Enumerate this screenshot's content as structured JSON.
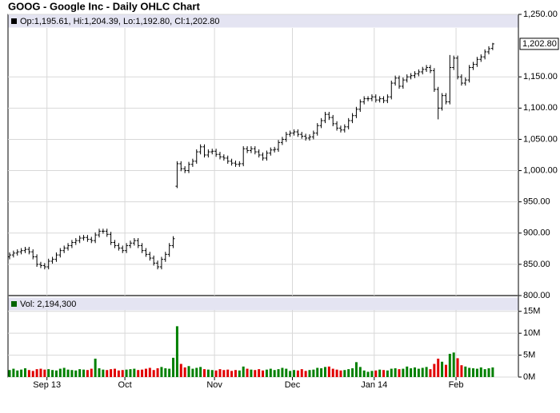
{
  "chart_data": [
    {
      "type": "ohlc",
      "title": "GOOG - Google Inc - Daily OHLC Chart",
      "legend": "Op:1,195.61, Hi:1,204.39, Lo:1,192.80, Cl:1,202.80",
      "last_price_label": "1,202.80",
      "color": "#000000",
      "legend_color": "#000000",
      "grid": true,
      "categories": [
        null,
        null,
        null,
        null,
        null,
        null,
        null,
        null,
        null,
        null,
        "Sep 13",
        null,
        null,
        null,
        null,
        null,
        null,
        null,
        null,
        null,
        null,
        null,
        null,
        null,
        null,
        null,
        null,
        null,
        null,
        null,
        "Oct",
        null,
        null,
        null,
        null,
        null,
        null,
        null,
        null,
        null,
        null,
        null,
        null,
        null,
        null,
        null,
        null,
        null,
        null,
        null,
        null,
        null,
        null,
        "Nov",
        null,
        null,
        null,
        null,
        null,
        null,
        null,
        null,
        null,
        null,
        null,
        null,
        null,
        null,
        null,
        null,
        null,
        null,
        null,
        "Dec",
        null,
        null,
        null,
        null,
        null,
        null,
        null,
        null,
        null,
        null,
        null,
        null,
        null,
        null,
        null,
        null,
        null,
        null,
        null,
        null,
        "Jan 14",
        null,
        null,
        null,
        null,
        null,
        null,
        null,
        null,
        null,
        null,
        null,
        null,
        null,
        null,
        null,
        null,
        null,
        null,
        null,
        null,
        "Feb",
        null,
        null,
        null,
        null,
        null,
        null,
        null,
        null,
        null
      ],
      "open": [
        862,
        865,
        868,
        870,
        872,
        874,
        870,
        862,
        850,
        848,
        846,
        855,
        858,
        865,
        872,
        876,
        880,
        885,
        888,
        892,
        893,
        890,
        888,
        897,
        903,
        903,
        898,
        885,
        880,
        876,
        872,
        880,
        884,
        888,
        880,
        872,
        866,
        860,
        852,
        846,
        858,
        866,
        880,
        975,
        1011,
        1003,
        1000,
        1010,
        1015,
        1030,
        1038,
        1025,
        1030,
        1031,
        1026,
        1022,
        1020,
        1015,
        1012,
        1010,
        1011,
        1035,
        1032,
        1035,
        1030,
        1025,
        1020,
        1028,
        1033,
        1034,
        1045,
        1050,
        1058,
        1060,
        1062,
        1058,
        1055,
        1052,
        1054,
        1060,
        1072,
        1080,
        1090,
        1085,
        1075,
        1068,
        1065,
        1070,
        1080,
        1088,
        1098,
        1110,
        1115,
        1115,
        1118,
        1113,
        1115,
        1112,
        1118,
        1140,
        1148,
        1135,
        1145,
        1150,
        1152,
        1155,
        1158,
        1162,
        1165,
        1160,
        1130,
        1100,
        1120,
        1110,
        1165,
        1180,
        1150,
        1140,
        1145,
        1165,
        1170,
        1178,
        1182,
        1190,
        1195.61
      ],
      "high": [
        869,
        872,
        874,
        876,
        878,
        878,
        874,
        866,
        854,
        852,
        859,
        862,
        869,
        876,
        880,
        884,
        889,
        892,
        896,
        897,
        897,
        894,
        901,
        907,
        907,
        907,
        902,
        889,
        884,
        880,
        884,
        888,
        892,
        892,
        884,
        876,
        870,
        864,
        856,
        862,
        870,
        884,
        895,
        1015,
        1015,
        1007,
        1014,
        1019,
        1034,
        1042,
        1042,
        1034,
        1035,
        1035,
        1030,
        1026,
        1024,
        1019,
        1016,
        1015,
        1039,
        1039,
        1039,
        1039,
        1034,
        1029,
        1032,
        1037,
        1038,
        1049,
        1054,
        1062,
        1064,
        1066,
        1066,
        1062,
        1059,
        1058,
        1064,
        1076,
        1084,
        1094,
        1094,
        1089,
        1079,
        1072,
        1074,
        1084,
        1092,
        1102,
        1114,
        1119,
        1119,
        1122,
        1122,
        1119,
        1119,
        1122,
        1144,
        1152,
        1152,
        1149,
        1154,
        1156,
        1159,
        1162,
        1166,
        1169,
        1169,
        1164,
        1134,
        1124,
        1124,
        1185,
        1184,
        1184,
        1154,
        1149,
        1169,
        1174,
        1182,
        1186,
        1194,
        1199,
        1204.39
      ],
      "low": [
        858,
        861,
        864,
        866,
        868,
        866,
        858,
        846,
        844,
        842,
        842,
        851,
        854,
        861,
        868,
        872,
        876,
        881,
        884,
        888,
        886,
        884,
        884,
        893,
        899,
        894,
        881,
        876,
        872,
        868,
        868,
        876,
        880,
        876,
        868,
        862,
        856,
        848,
        842,
        842,
        854,
        862,
        876,
        972,
        999,
        996,
        996,
        1006,
        1011,
        1026,
        1021,
        1021,
        1026,
        1022,
        1018,
        1016,
        1011,
        1008,
        1006,
        1006,
        1007,
        1028,
        1028,
        1026,
        1021,
        1016,
        1016,
        1024,
        1029,
        1030,
        1041,
        1046,
        1054,
        1056,
        1054,
        1051,
        1048,
        1048,
        1050,
        1056,
        1068,
        1076,
        1081,
        1071,
        1064,
        1061,
        1061,
        1066,
        1076,
        1084,
        1094,
        1106,
        1111,
        1111,
        1109,
        1109,
        1108,
        1108,
        1114,
        1136,
        1131,
        1131,
        1141,
        1146,
        1148,
        1151,
        1154,
        1158,
        1156,
        1126,
        1082,
        1096,
        1106,
        1106,
        1161,
        1146,
        1136,
        1136,
        1141,
        1161,
        1166,
        1174,
        1178,
        1186,
        1192.8
      ],
      "close": [
        865,
        868,
        870,
        872,
        874,
        870,
        862,
        850,
        848,
        846,
        855,
        858,
        865,
        872,
        876,
        880,
        885,
        888,
        892,
        893,
        890,
        888,
        897,
        903,
        903,
        898,
        885,
        880,
        876,
        872,
        880,
        884,
        888,
        880,
        872,
        866,
        860,
        852,
        846,
        858,
        866,
        880,
        891,
        1011,
        1003,
        1000,
        1010,
        1015,
        1030,
        1038,
        1025,
        1030,
        1031,
        1026,
        1022,
        1020,
        1015,
        1012,
        1010,
        1011,
        1035,
        1032,
        1035,
        1030,
        1025,
        1020,
        1028,
        1033,
        1034,
        1045,
        1050,
        1058,
        1060,
        1062,
        1058,
        1055,
        1052,
        1054,
        1060,
        1072,
        1080,
        1090,
        1085,
        1075,
        1068,
        1065,
        1070,
        1080,
        1088,
        1098,
        1110,
        1115,
        1115,
        1118,
        1113,
        1115,
        1112,
        1118,
        1140,
        1148,
        1135,
        1145,
        1150,
        1152,
        1155,
        1158,
        1162,
        1165,
        1160,
        1130,
        1100,
        1120,
        1110,
        1165,
        1180,
        1150,
        1140,
        1145,
        1165,
        1170,
        1178,
        1182,
        1190,
        1195,
        1202.8
      ],
      "ylim": [
        800,
        1250
      ],
      "yticks": [
        {
          "value": 1250,
          "label": "1,250.00"
        },
        {
          "value": 1150,
          "label": "1,150.00"
        },
        {
          "value": 1100,
          "label": "1,100.00"
        },
        {
          "value": 1050,
          "label": "1,050.00"
        },
        {
          "value": 1000,
          "label": "1,000.00"
        },
        {
          "value": 950,
          "label": "950.00"
        },
        {
          "value": 900,
          "label": "900.00"
        },
        {
          "value": 850,
          "label": "850.00"
        },
        {
          "value": 800,
          "label": "800.00"
        }
      ]
    },
    {
      "type": "bar",
      "legend": "Vol: 2,194,300",
      "legend_color": "#006400",
      "up_color": "#008000",
      "down_color": "#e00000",
      "grid": true,
      "values": [
        1.6,
        1.9,
        1.5,
        1.7,
        2.0,
        1.6,
        1.4,
        1.8,
        1.9,
        1.7,
        1.8,
        1.6,
        1.5,
        1.9,
        2.1,
        1.7,
        1.6,
        1.5,
        1.8,
        1.7,
        1.6,
        1.9,
        4.2,
        2.0,
        1.7,
        1.6,
        1.8,
        1.9,
        1.5,
        1.6,
        1.7,
        1.8,
        1.9,
        1.6,
        1.7,
        1.9,
        2.1,
        1.6,
        2.0,
        2.3,
        2.0,
        1.9,
        4.4,
        11.6,
        3.0,
        2.2,
        2.5,
        1.9,
        2.1,
        2.3,
        1.8,
        1.7,
        1.6,
        1.5,
        1.8,
        1.6,
        1.7,
        1.4,
        1.6,
        1.5,
        2.4,
        1.9,
        1.7,
        1.6,
        1.8,
        1.5,
        1.7,
        1.9,
        1.6,
        1.8,
        2.1,
        1.9,
        1.4,
        1.6,
        1.5,
        1.8,
        1.4,
        1.6,
        1.7,
        2.1,
        2.0,
        2.3,
        2.4,
        1.9,
        1.7,
        1.5,
        1.6,
        1.8,
        2.0,
        3.4,
        2.3,
        1.5,
        1.2,
        1.4,
        1.5,
        1.7,
        1.6,
        1.5,
        1.9,
        2.0,
        1.8,
        1.9,
        2.4,
        2.0,
        2.2,
        1.9,
        2.1,
        2.3,
        1.8,
        3.0,
        4.2,
        3.5,
        2.8,
        5.3,
        5.6,
        4.3,
        2.7,
        2.4,
        2.1,
        2.0,
        1.9,
        2.2,
        1.8,
        2.0,
        2.1943
      ],
      "ylim": [
        0,
        18.6
      ],
      "yticks": [
        {
          "value": 15,
          "label": "15M"
        },
        {
          "value": 10,
          "label": "10M"
        },
        {
          "value": 5,
          "label": "5M"
        },
        {
          "value": 0,
          "label": "0M"
        }
      ]
    }
  ]
}
